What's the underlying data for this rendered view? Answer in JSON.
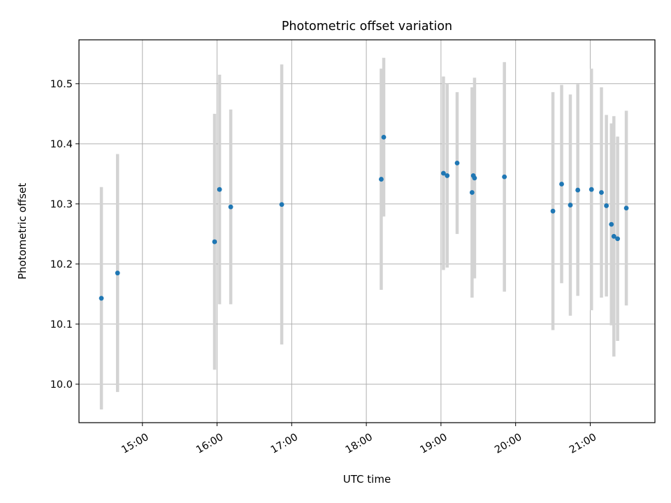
{
  "chart_data": {
    "type": "scatter",
    "title": "Photometric offset variation",
    "xlabel": "UTC time",
    "ylabel": "Photometric offset",
    "x_tick_labels": [
      "15:00",
      "16:00",
      "17:00",
      "18:00",
      "19:00",
      "20:00",
      "21:00"
    ],
    "y_tick_labels": [
      "10.0",
      "10.1",
      "10.2",
      "10.3",
      "10.4",
      "10.5"
    ],
    "y_ticks": [
      10.0,
      10.1,
      10.2,
      10.3,
      10.4,
      10.5
    ],
    "xlim": [
      "14:09",
      "21:52"
    ],
    "ylim": [
      9.936,
      10.573
    ],
    "grid": true,
    "colors": {
      "points": "#1f77b4",
      "errorbars": "#d3d3d3",
      "grid": "#b0b0b0"
    },
    "series": [
      {
        "points": [
          {
            "x": "14:27",
            "y": 10.143,
            "yerr": 0.185
          },
          {
            "x": "14:40",
            "y": 10.185,
            "yerr": 0.198
          },
          {
            "x": "15:58",
            "y": 10.237,
            "yerr": 0.213
          },
          {
            "x": "16:02",
            "y": 10.324,
            "yerr": 0.191
          },
          {
            "x": "16:11",
            "y": 10.295,
            "yerr": 0.162
          },
          {
            "x": "16:52",
            "y": 10.299,
            "yerr": 0.233
          },
          {
            "x": "18:12",
            "y": 10.341,
            "yerr": 0.184
          },
          {
            "x": "18:14",
            "y": 10.411,
            "yerr": 0.132
          },
          {
            "x": "19:02",
            "y": 10.351,
            "yerr": 0.161
          },
          {
            "x": "19:05",
            "y": 10.347,
            "yerr": 0.153
          },
          {
            "x": "19:13",
            "y": 10.368,
            "yerr": 0.118
          },
          {
            "x": "19:25",
            "y": 10.319,
            "yerr": 0.175
          },
          {
            "x": "19:26",
            "y": 10.347,
            "yerr": 0.147
          },
          {
            "x": "19:27",
            "y": 10.343,
            "yerr": 0.167
          },
          {
            "x": "19:51",
            "y": 10.345,
            "yerr": 0.191
          },
          {
            "x": "20:30",
            "y": 10.288,
            "yerr": 0.198
          },
          {
            "x": "20:37",
            "y": 10.333,
            "yerr": 0.165
          },
          {
            "x": "20:44",
            "y": 10.298,
            "yerr": 0.184
          },
          {
            "x": "20:50",
            "y": 10.323,
            "yerr": 0.176
          },
          {
            "x": "21:01",
            "y": 10.324,
            "yerr": 0.201
          },
          {
            "x": "21:09",
            "y": 10.319,
            "yerr": 0.175
          },
          {
            "x": "21:13",
            "y": 10.297,
            "yerr": 0.151
          },
          {
            "x": "21:17",
            "y": 10.266,
            "yerr": 0.168
          },
          {
            "x": "21:19",
            "y": 10.246,
            "yerr": 0.2
          },
          {
            "x": "21:22",
            "y": 10.242,
            "yerr": 0.17
          },
          {
            "x": "21:29",
            "y": 10.293,
            "yerr": 0.162
          }
        ]
      }
    ]
  }
}
